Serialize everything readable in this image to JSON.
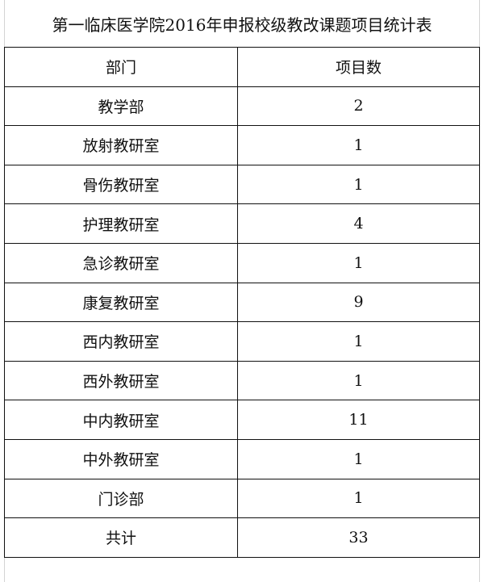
{
  "title": "第一临床医学院2016年申报校级教改课题项目统计表",
  "headers": [
    "部门",
    "项目数"
  ],
  "rows": [
    {
      "dept": "教学部",
      "count": "2"
    },
    {
      "dept": "放射教研室",
      "count": "1"
    },
    {
      "dept": "骨伤教研室",
      "count": "1"
    },
    {
      "dept": "护理教研室",
      "count": "4"
    },
    {
      "dept": "急诊教研室",
      "count": "1"
    },
    {
      "dept": "康复教研室",
      "count": "9"
    },
    {
      "dept": "西内教研室",
      "count": "1"
    },
    {
      "dept": "西外教研室",
      "count": "1"
    },
    {
      "dept": "中内教研室",
      "count": "11"
    },
    {
      "dept": "中外教研室",
      "count": "1"
    },
    {
      "dept": "门诊部",
      "count": "1"
    }
  ],
  "total": {
    "label": "共计",
    "count": "33"
  }
}
